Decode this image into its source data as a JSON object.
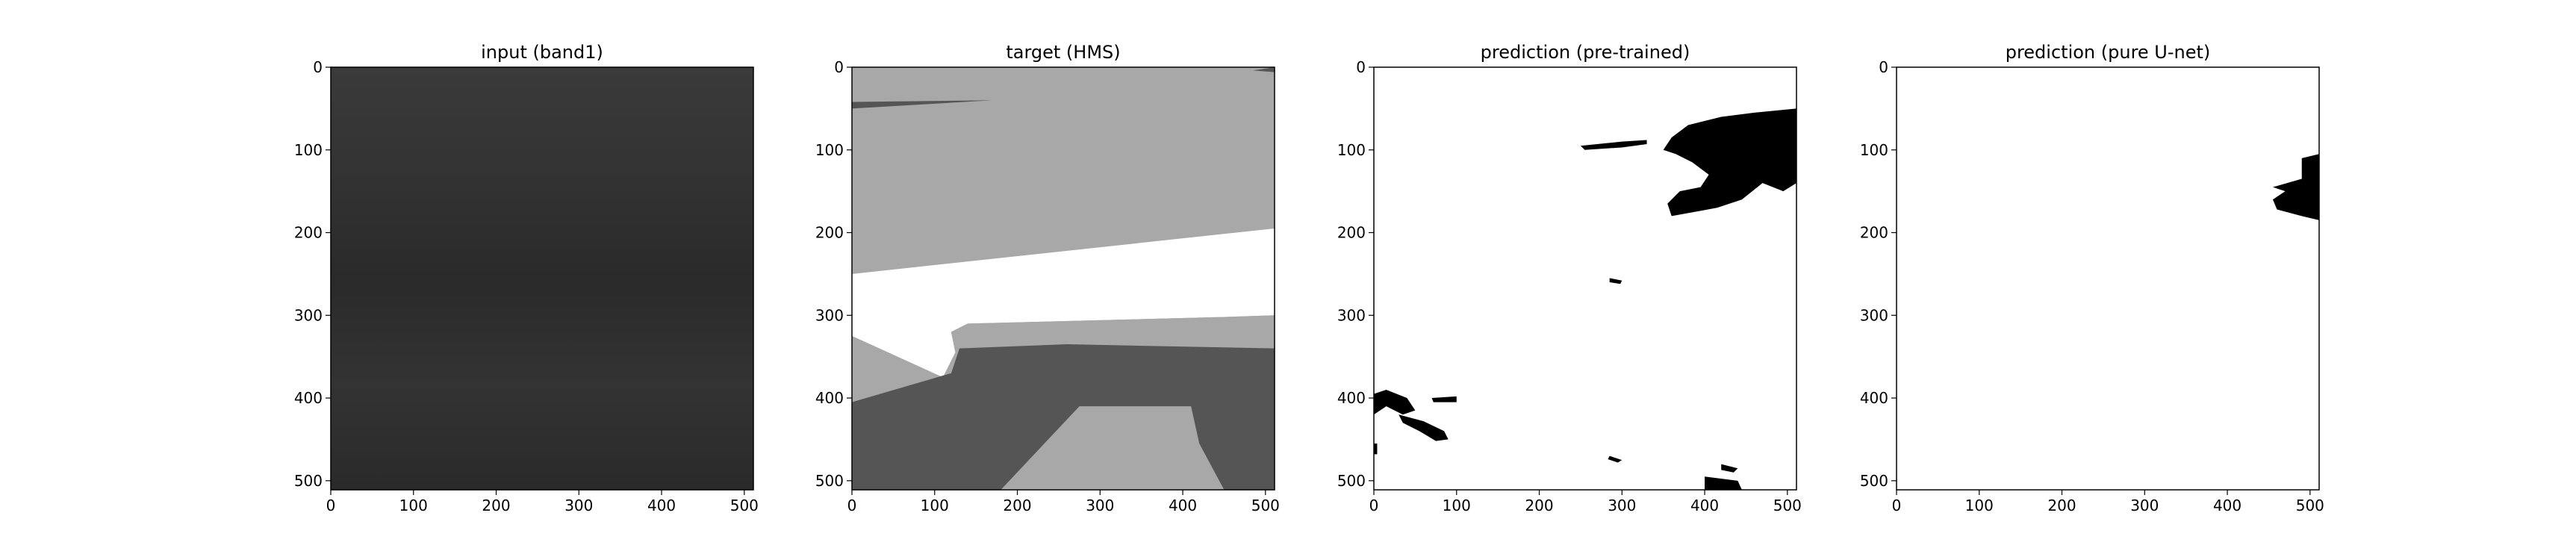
{
  "chart_data": [
    {
      "type": "heatmap",
      "title": "input (band1)",
      "xlim": [
        0,
        511
      ],
      "ylim": [
        511,
        0
      ],
      "xticks": [
        0,
        100,
        200,
        300,
        400,
        500
      ],
      "yticks": [
        0,
        100,
        200,
        300,
        400,
        500
      ],
      "content": "grayscale",
      "colors": {
        "dark": "#2a2a2a",
        "mid": "#333333",
        "light": "#3a3a3a"
      }
    },
    {
      "type": "heatmap",
      "title": "target (HMS)",
      "xlim": [
        0,
        511
      ],
      "ylim": [
        511,
        0
      ],
      "xticks": [
        0,
        100,
        200,
        300,
        400,
        500
      ],
      "yticks": [
        0,
        100,
        200,
        300,
        400,
        500
      ],
      "content": "segmentation",
      "colors": {
        "white": "#ffffff",
        "light": "#a8a8a8",
        "dark": "#555555"
      },
      "regions": [
        {
          "class": "light",
          "points": [
            [
              0,
              0
            ],
            [
              511,
              0
            ],
            [
              511,
              195
            ],
            [
              0,
              250
            ]
          ]
        },
        {
          "class": "white",
          "points": [
            [
              0,
              250
            ],
            [
              511,
              195
            ],
            [
              511,
              300
            ],
            [
              450,
              302
            ],
            [
              140,
              310
            ],
            [
              120,
              320
            ],
            [
              125,
              345
            ],
            [
              110,
              375
            ],
            [
              0,
              325
            ]
          ]
        },
        {
          "class": "light",
          "points": [
            [
              0,
              325
            ],
            [
              110,
              375
            ],
            [
              125,
              345
            ],
            [
              120,
              320
            ],
            [
              140,
              310
            ],
            [
              450,
              302
            ],
            [
              511,
              300
            ],
            [
              511,
              340
            ],
            [
              260,
              335
            ],
            [
              130,
              340
            ],
            [
              120,
              370
            ],
            [
              0,
              405
            ]
          ]
        },
        {
          "class": "dark",
          "points": [
            [
              0,
              405
            ],
            [
              120,
              370
            ],
            [
              130,
              340
            ],
            [
              260,
              335
            ],
            [
              511,
              340
            ],
            [
              511,
              511
            ],
            [
              0,
              511
            ]
          ]
        },
        {
          "class": "light",
          "points": [
            [
              275,
              410
            ],
            [
              410,
              410
            ],
            [
              420,
              455
            ],
            [
              450,
              511
            ],
            [
              180,
              511
            ]
          ]
        },
        {
          "class": "dark",
          "points": [
            [
              0,
              42
            ],
            [
              170,
              40
            ],
            [
              170,
              40
            ],
            [
              0,
              50
            ]
          ]
        },
        {
          "class": "dark",
          "points": [
            [
              485,
              4
            ],
            [
              511,
              0
            ],
            [
              511,
              6
            ]
          ]
        }
      ]
    },
    {
      "type": "heatmap",
      "title": "prediction (pre-trained)",
      "xlim": [
        0,
        511
      ],
      "ylim": [
        511,
        0
      ],
      "xticks": [
        0,
        100,
        200,
        300,
        400,
        500
      ],
      "yticks": [
        0,
        100,
        200,
        300,
        400,
        500
      ],
      "content": "binary-mask",
      "colors": {
        "background": "#ffffff",
        "mask": "#000000"
      },
      "regions": [
        {
          "points": [
            [
              380,
              70
            ],
            [
              420,
              60
            ],
            [
              460,
              55
            ],
            [
              511,
              50
            ],
            [
              511,
              140
            ],
            [
              495,
              150
            ],
            [
              470,
              140
            ],
            [
              445,
              160
            ],
            [
              415,
              170
            ],
            [
              360,
              180
            ],
            [
              355,
              165
            ],
            [
              370,
              150
            ],
            [
              395,
              145
            ],
            [
              405,
              130
            ],
            [
              385,
              115
            ],
            [
              365,
              105
            ],
            [
              350,
              100
            ],
            [
              360,
              85
            ]
          ]
        },
        {
          "points": [
            [
              250,
              95
            ],
            [
              300,
              90
            ],
            [
              330,
              88
            ],
            [
              330,
              93
            ],
            [
              300,
              97
            ],
            [
              255,
              100
            ]
          ]
        },
        {
          "points": [
            [
              0,
              395
            ],
            [
              15,
              390
            ],
            [
              40,
              400
            ],
            [
              50,
              415
            ],
            [
              35,
              420
            ],
            [
              15,
              410
            ],
            [
              0,
              420
            ]
          ]
        },
        {
          "points": [
            [
              30,
              420
            ],
            [
              60,
              428
            ],
            [
              85,
              440
            ],
            [
              90,
              450
            ],
            [
              75,
              452
            ],
            [
              55,
              440
            ],
            [
              35,
              430
            ]
          ]
        },
        {
          "points": [
            [
              70,
              400
            ],
            [
              100,
              398
            ],
            [
              100,
              405
            ],
            [
              72,
              405
            ]
          ]
        },
        {
          "points": [
            [
              285,
              255
            ],
            [
              300,
              258
            ],
            [
              298,
              262
            ],
            [
              285,
              260
            ]
          ]
        },
        {
          "points": [
            [
              420,
              480
            ],
            [
              440,
              485
            ],
            [
              435,
              490
            ],
            [
              420,
              487
            ]
          ]
        },
        {
          "points": [
            [
              400,
              495
            ],
            [
              440,
              500
            ],
            [
              445,
              511
            ],
            [
              400,
              511
            ]
          ]
        },
        {
          "points": [
            [
              285,
              470
            ],
            [
              300,
              475
            ],
            [
              295,
              478
            ],
            [
              283,
              474
            ]
          ]
        },
        {
          "points": [
            [
              0,
              455
            ],
            [
              4,
              455
            ],
            [
              4,
              468
            ],
            [
              0,
              468
            ]
          ]
        }
      ]
    },
    {
      "type": "heatmap",
      "title": "prediction (pure U-net)",
      "xlim": [
        0,
        511
      ],
      "ylim": [
        511,
        0
      ],
      "xticks": [
        0,
        100,
        200,
        300,
        400,
        500
      ],
      "yticks": [
        0,
        100,
        200,
        300,
        400,
        500
      ],
      "content": "binary-mask",
      "colors": {
        "background": "#ffffff",
        "mask": "#000000"
      },
      "regions": [
        {
          "points": [
            [
              490,
              110
            ],
            [
              511,
              105
            ],
            [
              511,
              185
            ],
            [
              490,
              180
            ],
            [
              460,
              172
            ],
            [
              455,
              160
            ],
            [
              470,
              150
            ],
            [
              455,
              145
            ],
            [
              490,
              135
            ]
          ]
        }
      ]
    }
  ]
}
